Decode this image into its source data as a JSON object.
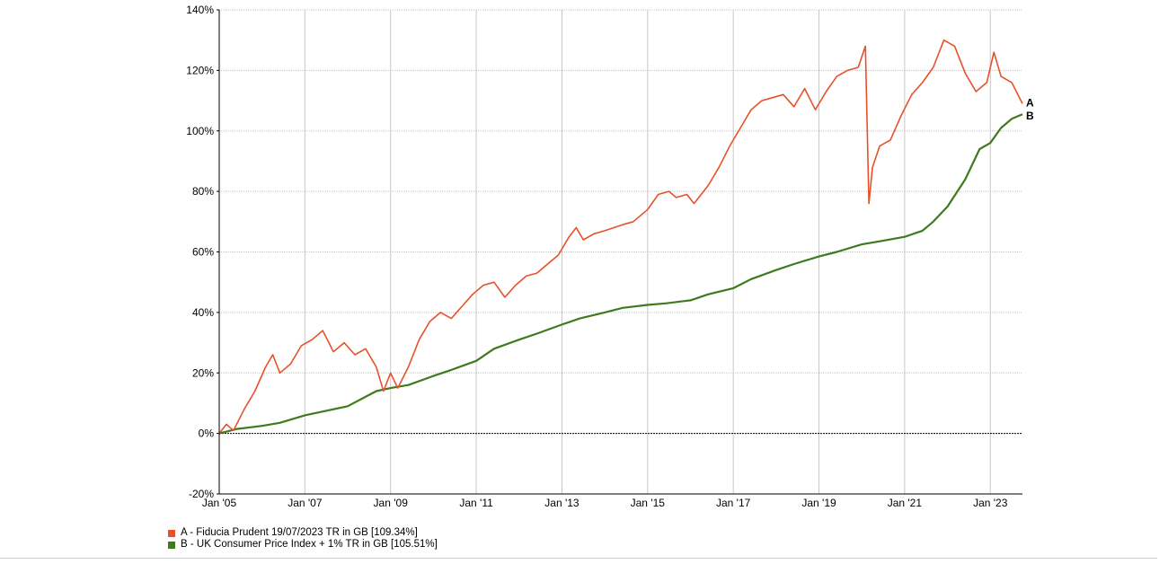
{
  "chart_data": {
    "type": "line",
    "title": "",
    "xlabel": "",
    "ylabel": "",
    "x_tick_labels": [
      "Jan '05",
      "Jan '07",
      "Jan '09",
      "Jan '11",
      "Jan '13",
      "Jan '15",
      "Jan '17",
      "Jan '19",
      "Jan '21",
      "Jan '23"
    ],
    "y_tick_labels": [
      "-20%",
      "0%",
      "20%",
      "40%",
      "60%",
      "80%",
      "100%",
      "120%",
      "140%"
    ],
    "xlim": [
      "2005-01",
      "2023-10"
    ],
    "ylim": [
      -20,
      140
    ],
    "grid": true,
    "zero_line": true,
    "legend_position": "bottom-left",
    "series": [
      {
        "name": "A - Fiducia Prudent 19/07/2023 TR in GB [109.34%]",
        "marker_label": "A",
        "color": "#e8502a",
        "final_value": 109.34,
        "points": [
          [
            "2005-01",
            0
          ],
          [
            "2005-03",
            3
          ],
          [
            "2005-05",
            1
          ],
          [
            "2005-08",
            8
          ],
          [
            "2005-11",
            14
          ],
          [
            "2006-02",
            22
          ],
          [
            "2006-04",
            26
          ],
          [
            "2006-06",
            20
          ],
          [
            "2006-09",
            23
          ],
          [
            "2006-12",
            29
          ],
          [
            "2007-03",
            31
          ],
          [
            "2007-06",
            34
          ],
          [
            "2007-09",
            27
          ],
          [
            "2007-12",
            30
          ],
          [
            "2008-03",
            26
          ],
          [
            "2008-06",
            28
          ],
          [
            "2008-09",
            22
          ],
          [
            "2008-11",
            14
          ],
          [
            "2009-01",
            20
          ],
          [
            "2009-03",
            15
          ],
          [
            "2009-06",
            22
          ],
          [
            "2009-09",
            31
          ],
          [
            "2009-12",
            37
          ],
          [
            "2010-03",
            40
          ],
          [
            "2010-06",
            38
          ],
          [
            "2010-09",
            42
          ],
          [
            "2010-12",
            46
          ],
          [
            "2011-03",
            49
          ],
          [
            "2011-06",
            50
          ],
          [
            "2011-09",
            45
          ],
          [
            "2011-12",
            49
          ],
          [
            "2012-03",
            52
          ],
          [
            "2012-06",
            53
          ],
          [
            "2012-09",
            56
          ],
          [
            "2012-12",
            59
          ],
          [
            "2013-03",
            65
          ],
          [
            "2013-05",
            68
          ],
          [
            "2013-07",
            64
          ],
          [
            "2013-10",
            66
          ],
          [
            "2014-01",
            67
          ],
          [
            "2014-06",
            69
          ],
          [
            "2014-09",
            70
          ],
          [
            "2015-01",
            74
          ],
          [
            "2015-04",
            79
          ],
          [
            "2015-07",
            80
          ],
          [
            "2015-09",
            78
          ],
          [
            "2015-12",
            79
          ],
          [
            "2016-02",
            76
          ],
          [
            "2016-06",
            82
          ],
          [
            "2016-09",
            88
          ],
          [
            "2016-12",
            95
          ],
          [
            "2017-03",
            101
          ],
          [
            "2017-06",
            107
          ],
          [
            "2017-09",
            110
          ],
          [
            "2017-12",
            111
          ],
          [
            "2018-03",
            112
          ],
          [
            "2018-06",
            108
          ],
          [
            "2018-09",
            114
          ],
          [
            "2018-12",
            107
          ],
          [
            "2019-03",
            113
          ],
          [
            "2019-06",
            118
          ],
          [
            "2019-09",
            120
          ],
          [
            "2019-12",
            121
          ],
          [
            "2020-02",
            128
          ],
          [
            "2020-03",
            76
          ],
          [
            "2020-04",
            88
          ],
          [
            "2020-06",
            95
          ],
          [
            "2020-09",
            97
          ],
          [
            "2020-12",
            105
          ],
          [
            "2021-03",
            112
          ],
          [
            "2021-06",
            116
          ],
          [
            "2021-09",
            121
          ],
          [
            "2021-12",
            130
          ],
          [
            "2022-03",
            128
          ],
          [
            "2022-06",
            119
          ],
          [
            "2022-09",
            113
          ],
          [
            "2022-12",
            116
          ],
          [
            "2023-02",
            126
          ],
          [
            "2023-04",
            118
          ],
          [
            "2023-07",
            116
          ],
          [
            "2023-10",
            109
          ]
        ]
      },
      {
        "name": "B - UK Consumer Price Index + 1% TR in GB [105.51%]",
        "marker_label": "B",
        "color": "#3f7a1e",
        "final_value": 105.51,
        "points": [
          [
            "2005-01",
            0
          ],
          [
            "2005-06",
            1.5
          ],
          [
            "2006-01",
            2.5
          ],
          [
            "2006-06",
            3.5
          ],
          [
            "2007-01",
            6
          ],
          [
            "2008-01",
            9
          ],
          [
            "2008-09",
            14
          ],
          [
            "2009-01",
            15
          ],
          [
            "2009-06",
            16
          ],
          [
            "2010-01",
            19
          ],
          [
            "2010-06",
            21
          ],
          [
            "2011-01",
            24
          ],
          [
            "2011-06",
            28
          ],
          [
            "2012-01",
            31
          ],
          [
            "2012-06",
            33
          ],
          [
            "2013-01",
            36
          ],
          [
            "2013-06",
            38
          ],
          [
            "2014-01",
            40
          ],
          [
            "2014-06",
            41.5
          ],
          [
            "2015-01",
            42.5
          ],
          [
            "2015-06",
            43
          ],
          [
            "2016-01",
            44
          ],
          [
            "2016-06",
            46
          ],
          [
            "2017-01",
            48
          ],
          [
            "2017-06",
            51
          ],
          [
            "2018-01",
            54
          ],
          [
            "2018-06",
            56
          ],
          [
            "2019-01",
            58.5
          ],
          [
            "2019-06",
            60
          ],
          [
            "2020-01",
            62.5
          ],
          [
            "2020-06",
            63.5
          ],
          [
            "2021-01",
            65
          ],
          [
            "2021-06",
            67
          ],
          [
            "2021-09",
            70
          ],
          [
            "2022-01",
            75
          ],
          [
            "2022-06",
            84
          ],
          [
            "2022-10",
            94
          ],
          [
            "2023-01",
            96
          ],
          [
            "2023-04",
            101
          ],
          [
            "2023-07",
            104
          ],
          [
            "2023-10",
            105.51
          ]
        ]
      }
    ]
  }
}
